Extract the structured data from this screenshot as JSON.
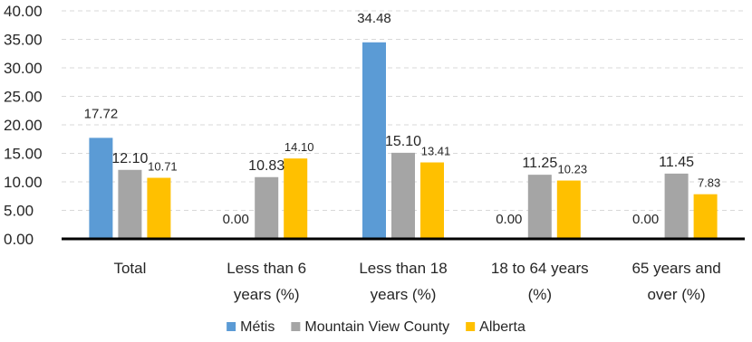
{
  "chart_data": {
    "type": "bar",
    "categories": [
      [
        "Total"
      ],
      [
        "Less than 6",
        "years (%)"
      ],
      [
        "Less than 18",
        "years (%)"
      ],
      [
        "18 to 64 years",
        "(%)"
      ],
      [
        "65 years and",
        "over (%)"
      ]
    ],
    "series": [
      {
        "name": "Métis",
        "color": "#5b9bd5",
        "values": [
          17.72,
          0.0,
          34.48,
          0.0,
          0.0
        ],
        "labels": [
          "17.72",
          "0.00",
          "34.48",
          "0.00",
          "0.00"
        ]
      },
      {
        "name": "Mountain View County",
        "color": "#a5a5a5",
        "values": [
          12.1,
          10.83,
          15.1,
          11.25,
          11.45
        ],
        "labels": [
          "12.10",
          "10.83",
          "15.10",
          "11.25",
          "11.45"
        ]
      },
      {
        "name": "Alberta",
        "color": "#ffc000",
        "values": [
          10.71,
          14.1,
          13.41,
          10.23,
          7.83
        ],
        "labels": [
          "10.71",
          "14.10",
          "13.41",
          "10.23",
          "7.83"
        ]
      }
    ],
    "yticks": [
      "0.00",
      "5.00",
      "10.00",
      "15.00",
      "20.00",
      "25.00",
      "30.00",
      "35.00",
      "40.00"
    ],
    "ylim": [
      0,
      40
    ],
    "grid": true,
    "legend_position": "bottom"
  }
}
